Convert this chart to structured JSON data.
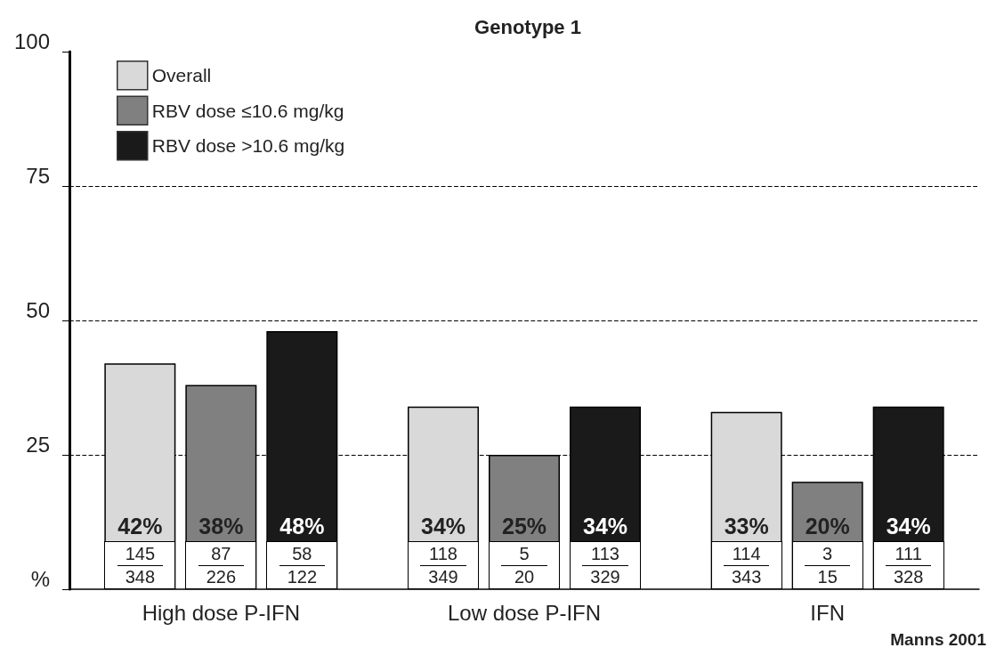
{
  "chart_data": {
    "type": "bar",
    "title": "Genotype 1",
    "categories": [
      "High dose P-IFN",
      "Low dose P-IFN",
      "IFN"
    ],
    "series": [
      {
        "name": "Overall",
        "color": "#d9d9d9",
        "values": [
          42,
          34,
          33
        ],
        "value_labels": [
          "42%",
          "34%",
          "33%"
        ]
      },
      {
        "name": "RBV dose ≤10.6 mg/kg",
        "color": "#808080",
        "values": [
          38,
          25,
          20
        ],
        "value_labels": [
          "38%",
          "25%",
          "20%"
        ]
      },
      {
        "name": "RBV dose >10.6 mg/kg",
        "color": "#1a1a1a",
        "values": [
          48,
          34,
          34
        ],
        "value_labels": [
          "48%",
          "34%",
          "34%"
        ]
      }
    ],
    "ylim": [
      0,
      100
    ],
    "yticks": [
      {
        "value": 0,
        "label": "%"
      },
      25,
      50,
      75,
      100
    ],
    "grid": "y",
    "legend": "top left",
    "annotations": [
      "145",
      "348",
      "87",
      "226",
      "58",
      "122",
      "118",
      "349",
      "5",
      "20",
      "113",
      "329",
      "114",
      "343",
      "3",
      "15",
      "111",
      "328",
      "Manns 2001"
    ]
  }
}
